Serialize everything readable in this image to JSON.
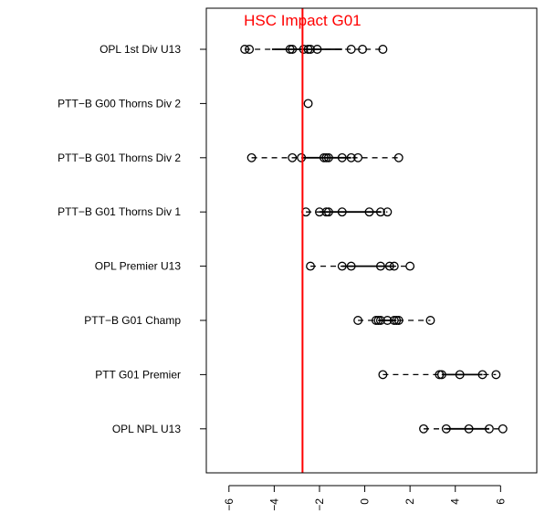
{
  "chart_data": {
    "type": "scatter",
    "orientation": "horizontal",
    "categories": [
      "OPL 1st Div U13",
      "PTT−B G00 Thorns Div 2",
      "PTT−B G01 Thorns Div 2",
      "PTT−B G01 Thorns Div 1",
      "OPL Premier U13",
      "PTT−B G01 Champ",
      "PTT G01 Premier",
      "OPL NPL U13"
    ],
    "rows": [
      {
        "points": [
          -5.3,
          -5.1,
          -3.3,
          -3.2,
          -2.7,
          -2.5,
          -2.4,
          -2.1,
          -0.6,
          -0.1,
          0.8
        ],
        "box": [
          -4.1,
          -1.0
        ]
      },
      {
        "points": [
          -2.5
        ],
        "box": [
          -2.5,
          -2.5
        ]
      },
      {
        "points": [
          -5.0,
          -3.2,
          -2.8,
          -1.8,
          -1.7,
          -1.6,
          -1.0,
          -0.6,
          -0.3,
          1.5
        ],
        "box": [
          -2.8,
          -0.6
        ]
      },
      {
        "points": [
          -2.6,
          -2.0,
          -1.7,
          -1.6,
          -1.0,
          0.2,
          0.7,
          1.0
        ],
        "box": [
          -2.0,
          0.7
        ]
      },
      {
        "points": [
          -2.4,
          -1.0,
          -0.6,
          0.7,
          1.1,
          1.3,
          2.0
        ],
        "box": [
          -1.0,
          1.3
        ]
      },
      {
        "points": [
          -0.3,
          0.5,
          0.6,
          0.7,
          1.0,
          1.3,
          1.4,
          1.5,
          2.9
        ],
        "box": [
          0.6,
          1.4
        ]
      },
      {
        "points": [
          0.8,
          3.3,
          3.4,
          4.2,
          5.2,
          5.8
        ],
        "box": [
          3.4,
          5.2
        ]
      },
      {
        "points": [
          2.6,
          3.6,
          4.6,
          5.5,
          6.1
        ],
        "box": [
          3.6,
          5.5
        ]
      }
    ],
    "xlim": [
      -7,
      7.6
    ],
    "xticks": [
      -6,
      -4,
      -2,
      0,
      2,
      4,
      6
    ],
    "xtick_labels": [
      "−6",
      "−4",
      "−2",
      "0",
      "2",
      "4",
      "6"
    ],
    "reference_line": {
      "value": -2.75,
      "label": "HSC Impact G01",
      "color": "#ff0000"
    },
    "title": "",
    "xlabel": "",
    "ylabel": "",
    "grid": false,
    "legend": "none"
  }
}
